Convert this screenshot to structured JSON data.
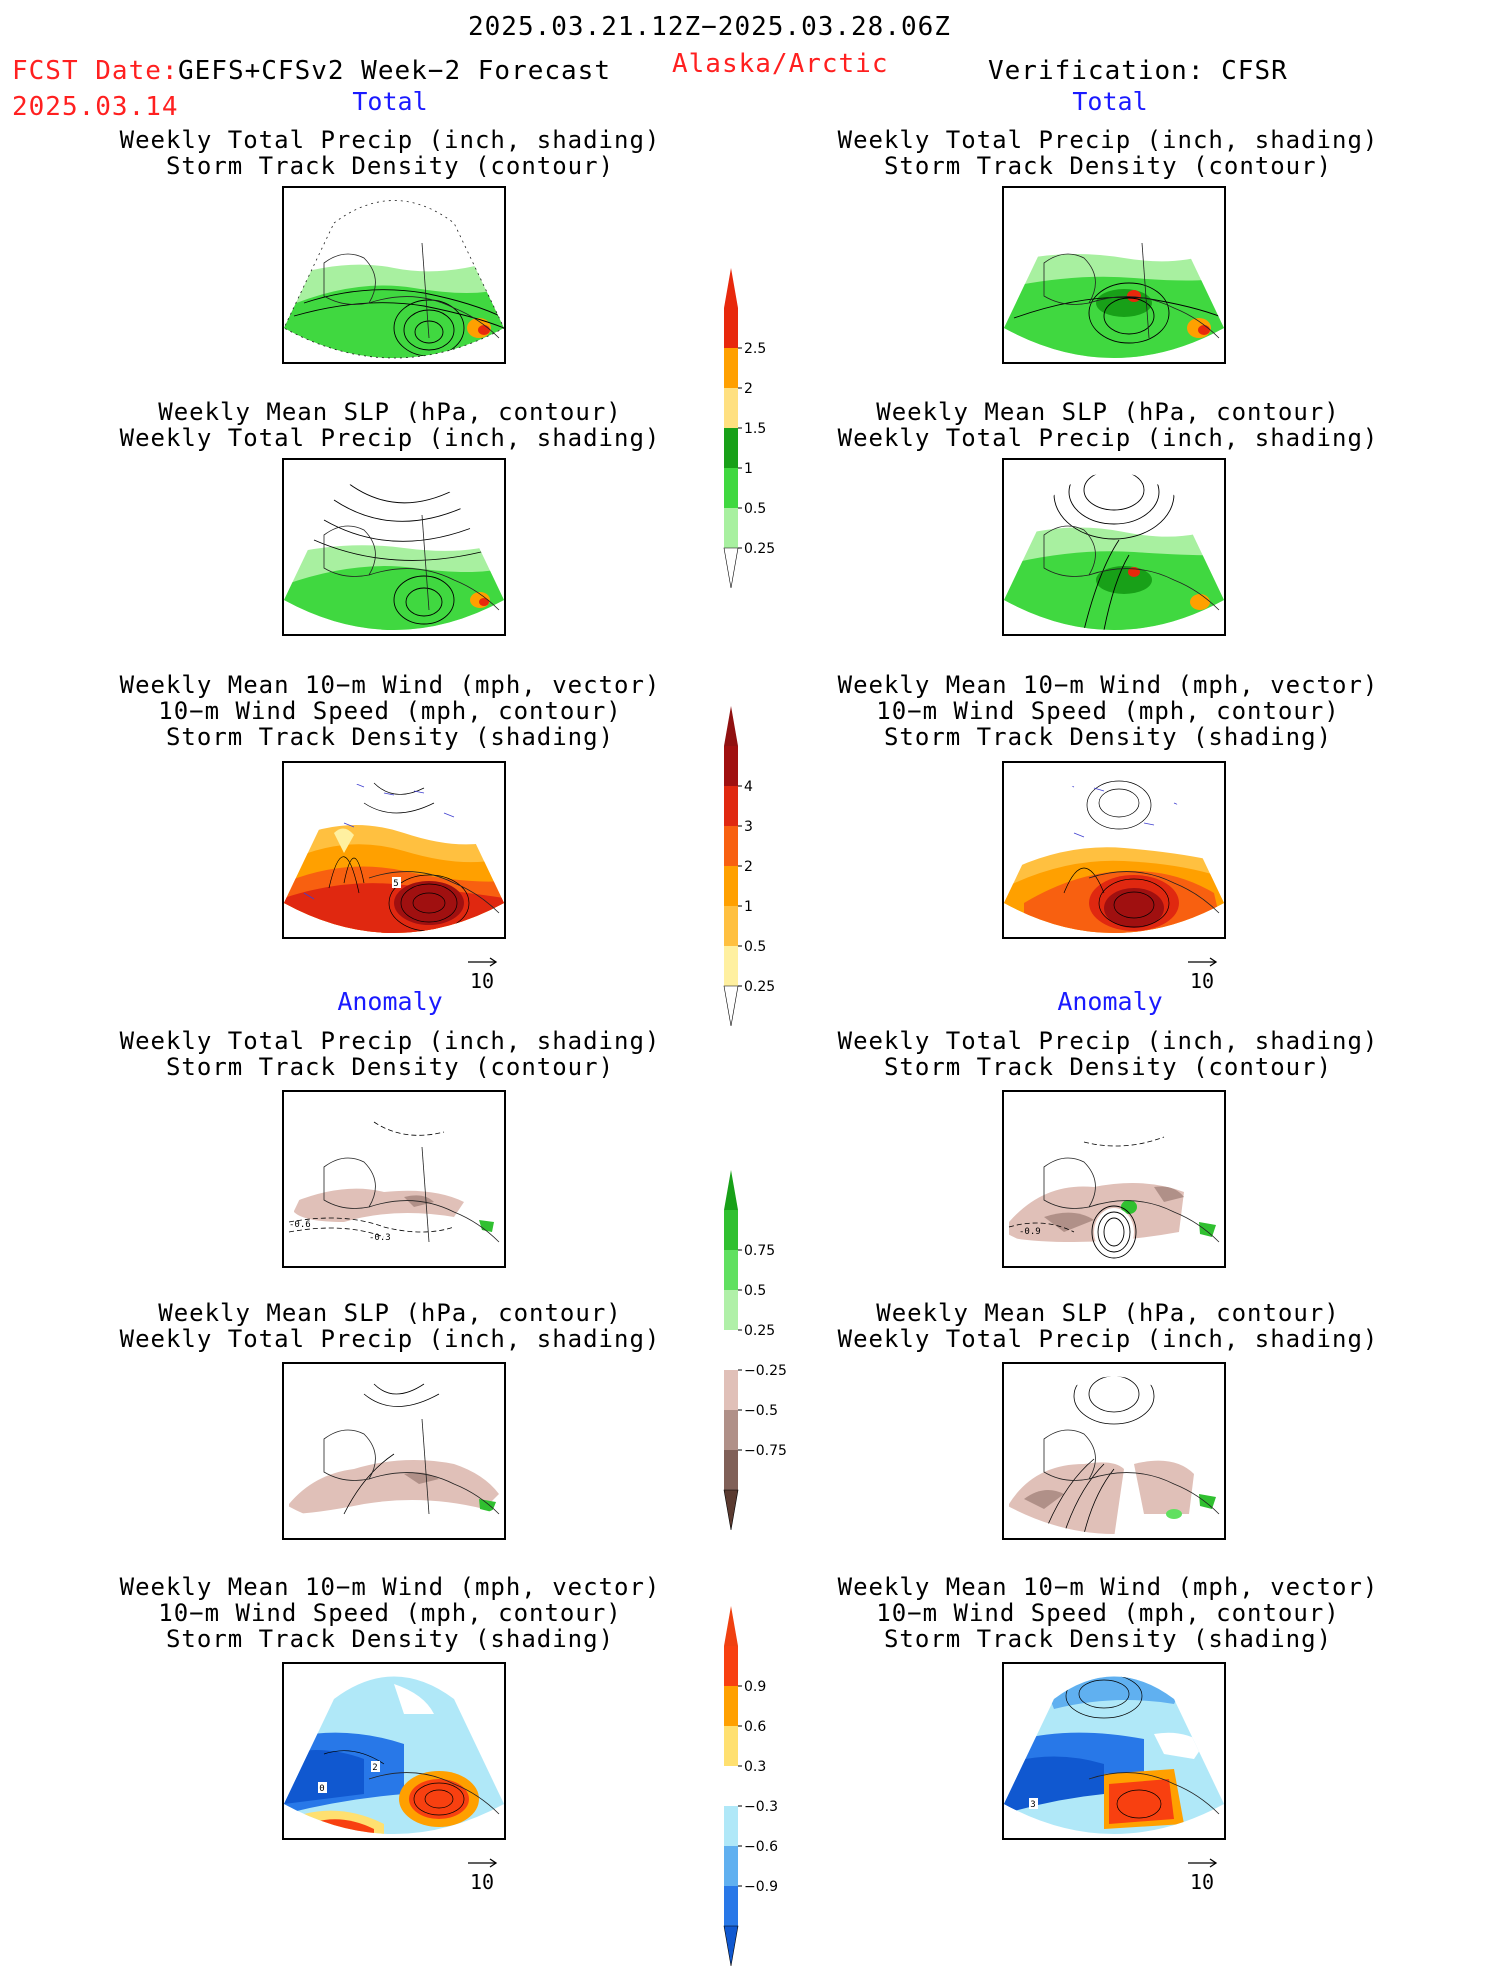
{
  "header": {
    "date_range": "2025.03.21.12Z−2025.03.28.06Z",
    "fcst_label": "FCST Date:",
    "model": "GEFS+CFSv2 Week−2 Forecast",
    "fcst_date": "2025.03.14",
    "region": "Alaska/Arctic",
    "verification": "Verification: CFSR"
  },
  "sections": {
    "total": "Total",
    "anomaly": "Anomaly"
  },
  "panels": [
    {
      "id": "ftp",
      "line1": "Weekly Total Precip (inch, shading)",
      "line2": "Storm Track Density (contour)",
      "line3": ""
    },
    {
      "id": "fslp",
      "line1": "Weekly Mean SLP (hPa, contour)",
      "line2": "Weekly Total Precip (inch, shading)",
      "line3": ""
    },
    {
      "id": "fwind",
      "line1": "Weekly Mean 10−m Wind (mph, vector)",
      "line2": "10−m Wind Speed (mph, contour)",
      "line3": "Storm Track Density (shading)"
    },
    {
      "id": "vtp",
      "line1": "Weekly Total Precip (inch, shading)",
      "line2": "Storm Track Density (contour)",
      "line3": ""
    },
    {
      "id": "vslp",
      "line1": "Weekly Mean SLP (hPa, contour)",
      "line2": "Weekly Total Precip (inch, shading)",
      "line3": ""
    },
    {
      "id": "vwind",
      "line1": "Weekly Mean 10−m Wind (mph, vector)",
      "line2": "10−m Wind Speed (mph, contour)",
      "line3": "Storm Track Density (shading)"
    }
  ],
  "vector_ref": "10",
  "colorbars": [
    {
      "name": "precip-total-colorbar",
      "labels": [
        "2.5",
        "2",
        "1.5",
        "1",
        "0.5",
        "0.25"
      ],
      "colors": [
        "#e8280c",
        "#ffa000",
        "#ffe080",
        "#18a018",
        "#40d840",
        "#a8f0a0"
      ],
      "tip_top": "#e8280c",
      "tip_bottom": "#ffffff"
    },
    {
      "name": "storm-total-colorbar",
      "labels": [
        "4",
        "3",
        "2",
        "1",
        "0.5",
        "0.25"
      ],
      "colors": [
        "#a01010",
        "#e02810",
        "#f86010",
        "#ffa000",
        "#ffc040",
        "#fff0a0"
      ],
      "tip_top": "#901010",
      "tip_bottom": "#ffffff"
    },
    {
      "name": "precip-anom-colorbar",
      "labels": [
        "0.75",
        "0.5",
        "0.25",
        "−0.25",
        "−0.5",
        "−0.75"
      ],
      "colors": [
        "#30c030",
        "#60e060",
        "#b0f0a8",
        "#ffffff",
        "#e0c0b8",
        "#b09088",
        "#806058"
      ],
      "tip_top": "#18a018",
      "tip_bottom": "#5a3a30"
    },
    {
      "name": "storm-anom-colorbar",
      "labels": [
        "0.9",
        "0.6",
        "0.3",
        "−0.3",
        "−0.6",
        "−0.9"
      ],
      "colors": [
        "#f84010",
        "#ffa000",
        "#ffe070",
        "#ffffff",
        "#b0e8f8",
        "#60b0f0",
        "#2878e8"
      ],
      "tip_top": "#f04010",
      "tip_bottom": "#1058d0"
    }
  ],
  "map_labels": {
    "fwind_total": "5",
    "fwind_anom_a": "2",
    "fwind_anom_b": "0",
    "vwind_anom": "3",
    "ftp_anom_a": "-0.6",
    "ftp_anom_b": "-0.3",
    "vtp_anom": "-0.9"
  }
}
